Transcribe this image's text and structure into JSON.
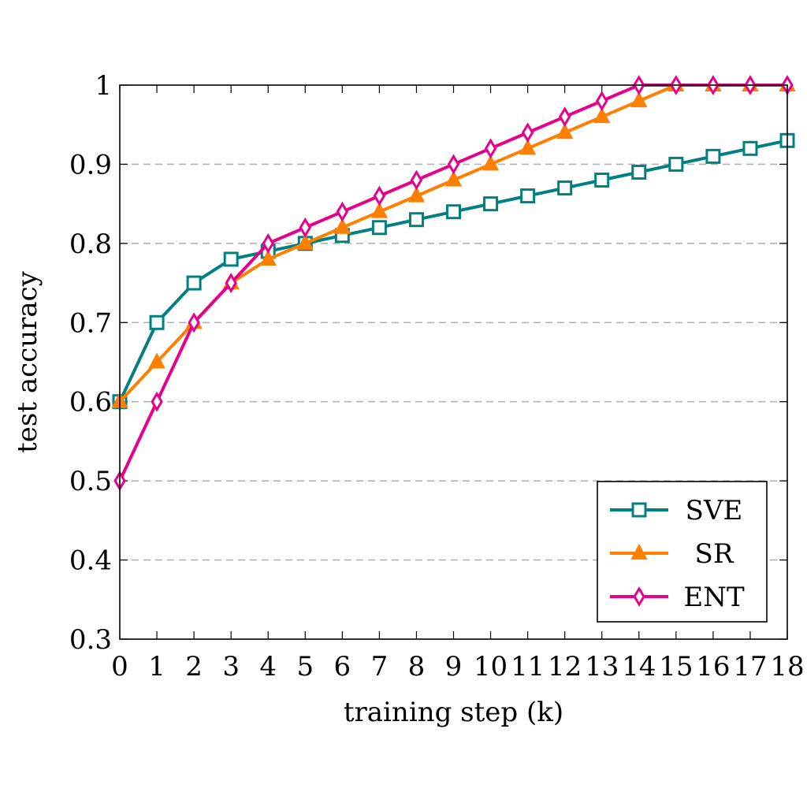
{
  "chart_data": {
    "type": "line",
    "xlabel": "training step (k)",
    "ylabel": "test accuracy",
    "x": [
      0,
      1,
      2,
      3,
      4,
      5,
      6,
      7,
      8,
      9,
      10,
      11,
      12,
      13,
      14,
      15,
      16,
      17,
      18
    ],
    "xlim": [
      0,
      18
    ],
    "ylim": [
      0.3,
      1.0
    ],
    "yticks": [
      0.3,
      0.4,
      0.5,
      0.6,
      0.7,
      0.8,
      0.9,
      1.0
    ],
    "ytick_labels": [
      "0.3",
      "0.4",
      "0.5",
      "0.6",
      "0.7",
      "0.8",
      "0.9",
      "1"
    ],
    "grid": "horizontal dashed",
    "legend_position": "bottom-right",
    "series": [
      {
        "name": "SVE",
        "color": "#008080",
        "marker": "square",
        "values": [
          0.6,
          0.7,
          0.75,
          0.78,
          0.79,
          0.8,
          0.81,
          0.82,
          0.83,
          0.84,
          0.85,
          0.86,
          0.87,
          0.88,
          0.89,
          0.9,
          0.91,
          0.92,
          0.93
        ]
      },
      {
        "name": "SR",
        "color": "#ff8000",
        "marker": "triangle",
        "values": [
          0.6,
          0.65,
          0.7,
          0.75,
          0.78,
          0.8,
          0.82,
          0.84,
          0.86,
          0.88,
          0.9,
          0.92,
          0.94,
          0.96,
          0.98,
          1.0,
          1.0,
          1.0,
          1.0
        ]
      },
      {
        "name": "ENT",
        "color": "#e6008a",
        "marker": "diamond",
        "values": [
          0.5,
          0.6,
          0.7,
          0.75,
          0.8,
          0.82,
          0.84,
          0.86,
          0.88,
          0.9,
          0.92,
          0.94,
          0.96,
          0.98,
          1.0,
          1.0,
          1.0,
          1.0,
          1.0
        ]
      }
    ]
  }
}
